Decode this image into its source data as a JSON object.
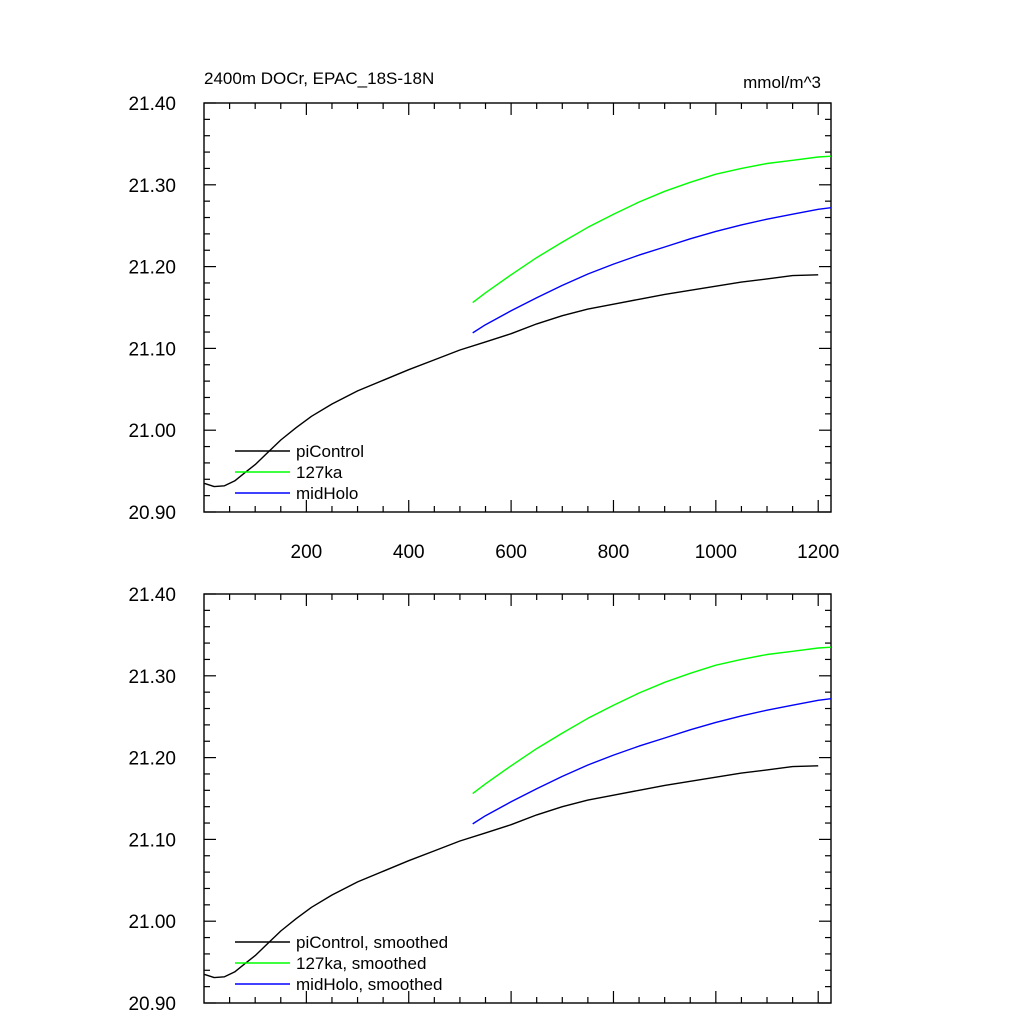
{
  "chart_data": [
    {
      "type": "line",
      "title": "2400m DOCr, EPAC_18S-18N",
      "units": "mmol/m^3",
      "xlim": [
        0,
        1225
      ],
      "ylim": [
        20.9,
        21.4
      ],
      "y_ticks": [
        "21.40",
        "21.30",
        "21.20",
        "21.10",
        "21.00",
        "20.90"
      ],
      "x_ticks": [
        "200",
        "400",
        "600",
        "800",
        "1000",
        "1200"
      ],
      "legend_position": "bottom-left",
      "series": [
        {
          "name": "piControl",
          "color": "#000000",
          "x": [
            1,
            20,
            40,
            60,
            80,
            100,
            120,
            150,
            180,
            210,
            250,
            300,
            350,
            400,
            450,
            500,
            550,
            600,
            650,
            700,
            750,
            800,
            850,
            900,
            950,
            1000,
            1050,
            1100,
            1150,
            1200
          ],
          "y": [
            20.935,
            20.931,
            20.932,
            20.938,
            20.948,
            20.958,
            20.97,
            20.988,
            21.003,
            21.017,
            21.032,
            21.048,
            21.061,
            21.074,
            21.086,
            21.098,
            21.108,
            21.118,
            21.13,
            21.14,
            21.148,
            21.154,
            21.16,
            21.166,
            21.171,
            21.176,
            21.181,
            21.185,
            21.189,
            21.19
          ]
        },
        {
          "name": "127ka",
          "color": "#00ff00",
          "x": [
            525,
            550,
            600,
            650,
            700,
            750,
            800,
            850,
            900,
            950,
            1000,
            1050,
            1100,
            1150,
            1200,
            1225
          ],
          "y": [
            21.156,
            21.168,
            21.19,
            21.211,
            21.23,
            21.248,
            21.264,
            21.279,
            21.292,
            21.303,
            21.313,
            21.32,
            21.326,
            21.33,
            21.334,
            21.335
          ]
        },
        {
          "name": "midHolo",
          "color": "#0000ff",
          "x": [
            525,
            550,
            600,
            650,
            700,
            750,
            800,
            850,
            900,
            950,
            1000,
            1050,
            1100,
            1150,
            1200,
            1225
          ],
          "y": [
            21.119,
            21.129,
            21.146,
            21.162,
            21.177,
            21.191,
            21.203,
            21.214,
            21.224,
            21.234,
            21.243,
            21.251,
            21.258,
            21.264,
            21.27,
            21.272
          ]
        }
      ]
    },
    {
      "type": "line",
      "xlim": [
        0,
        1225
      ],
      "ylim": [
        20.9,
        21.4
      ],
      "y_ticks": [
        "21.40",
        "21.30",
        "21.20",
        "21.10",
        "21.00",
        "20.90"
      ],
      "legend_position": "bottom-left",
      "series": [
        {
          "name": "piControl, smoothed",
          "color": "#000000",
          "x": [
            1,
            20,
            40,
            60,
            80,
            100,
            120,
            150,
            180,
            210,
            250,
            300,
            350,
            400,
            450,
            500,
            550,
            600,
            650,
            700,
            750,
            800,
            850,
            900,
            950,
            1000,
            1050,
            1100,
            1150,
            1200
          ],
          "y": [
            20.935,
            20.931,
            20.932,
            20.938,
            20.948,
            20.958,
            20.97,
            20.988,
            21.003,
            21.017,
            21.032,
            21.048,
            21.061,
            21.074,
            21.086,
            21.098,
            21.108,
            21.118,
            21.13,
            21.14,
            21.148,
            21.154,
            21.16,
            21.166,
            21.171,
            21.176,
            21.181,
            21.185,
            21.189,
            21.19
          ]
        },
        {
          "name": "127ka, smoothed",
          "color": "#00ff00",
          "x": [
            525,
            550,
            600,
            650,
            700,
            750,
            800,
            850,
            900,
            950,
            1000,
            1050,
            1100,
            1150,
            1200,
            1225
          ],
          "y": [
            21.156,
            21.168,
            21.19,
            21.211,
            21.23,
            21.248,
            21.264,
            21.279,
            21.292,
            21.303,
            21.313,
            21.32,
            21.326,
            21.33,
            21.334,
            21.335
          ]
        },
        {
          "name": "midHolo, smoothed",
          "color": "#0000ff",
          "x": [
            525,
            550,
            600,
            650,
            700,
            750,
            800,
            850,
            900,
            950,
            1000,
            1050,
            1100,
            1150,
            1200,
            1225
          ],
          "y": [
            21.119,
            21.129,
            21.146,
            21.162,
            21.177,
            21.191,
            21.203,
            21.214,
            21.224,
            21.234,
            21.243,
            21.251,
            21.258,
            21.264,
            21.27,
            21.272
          ]
        }
      ]
    }
  ]
}
